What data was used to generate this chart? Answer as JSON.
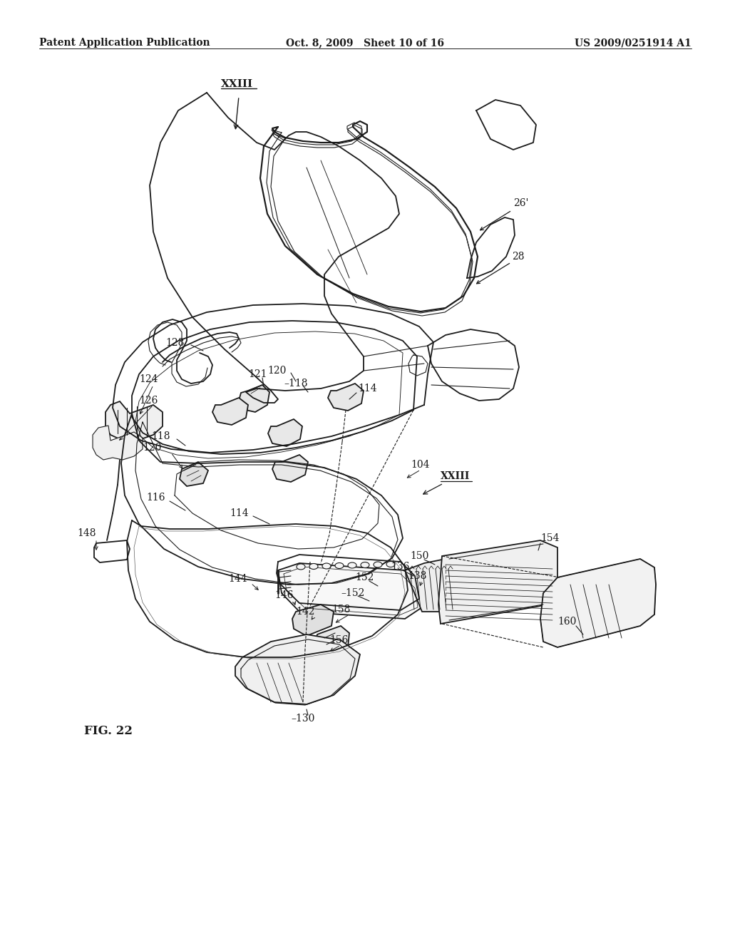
{
  "background_color": "#ffffff",
  "header_left": "Patent Application Publication",
  "header_center": "Oct. 8, 2009   Sheet 10 of 16",
  "header_right": "US 2009/0251914 A1",
  "figure_label": "FIG. 22",
  "line_color": "#1a1a1a",
  "header_fontsize": 10,
  "label_fontsize": 10,
  "fig_label_fontsize": 12
}
